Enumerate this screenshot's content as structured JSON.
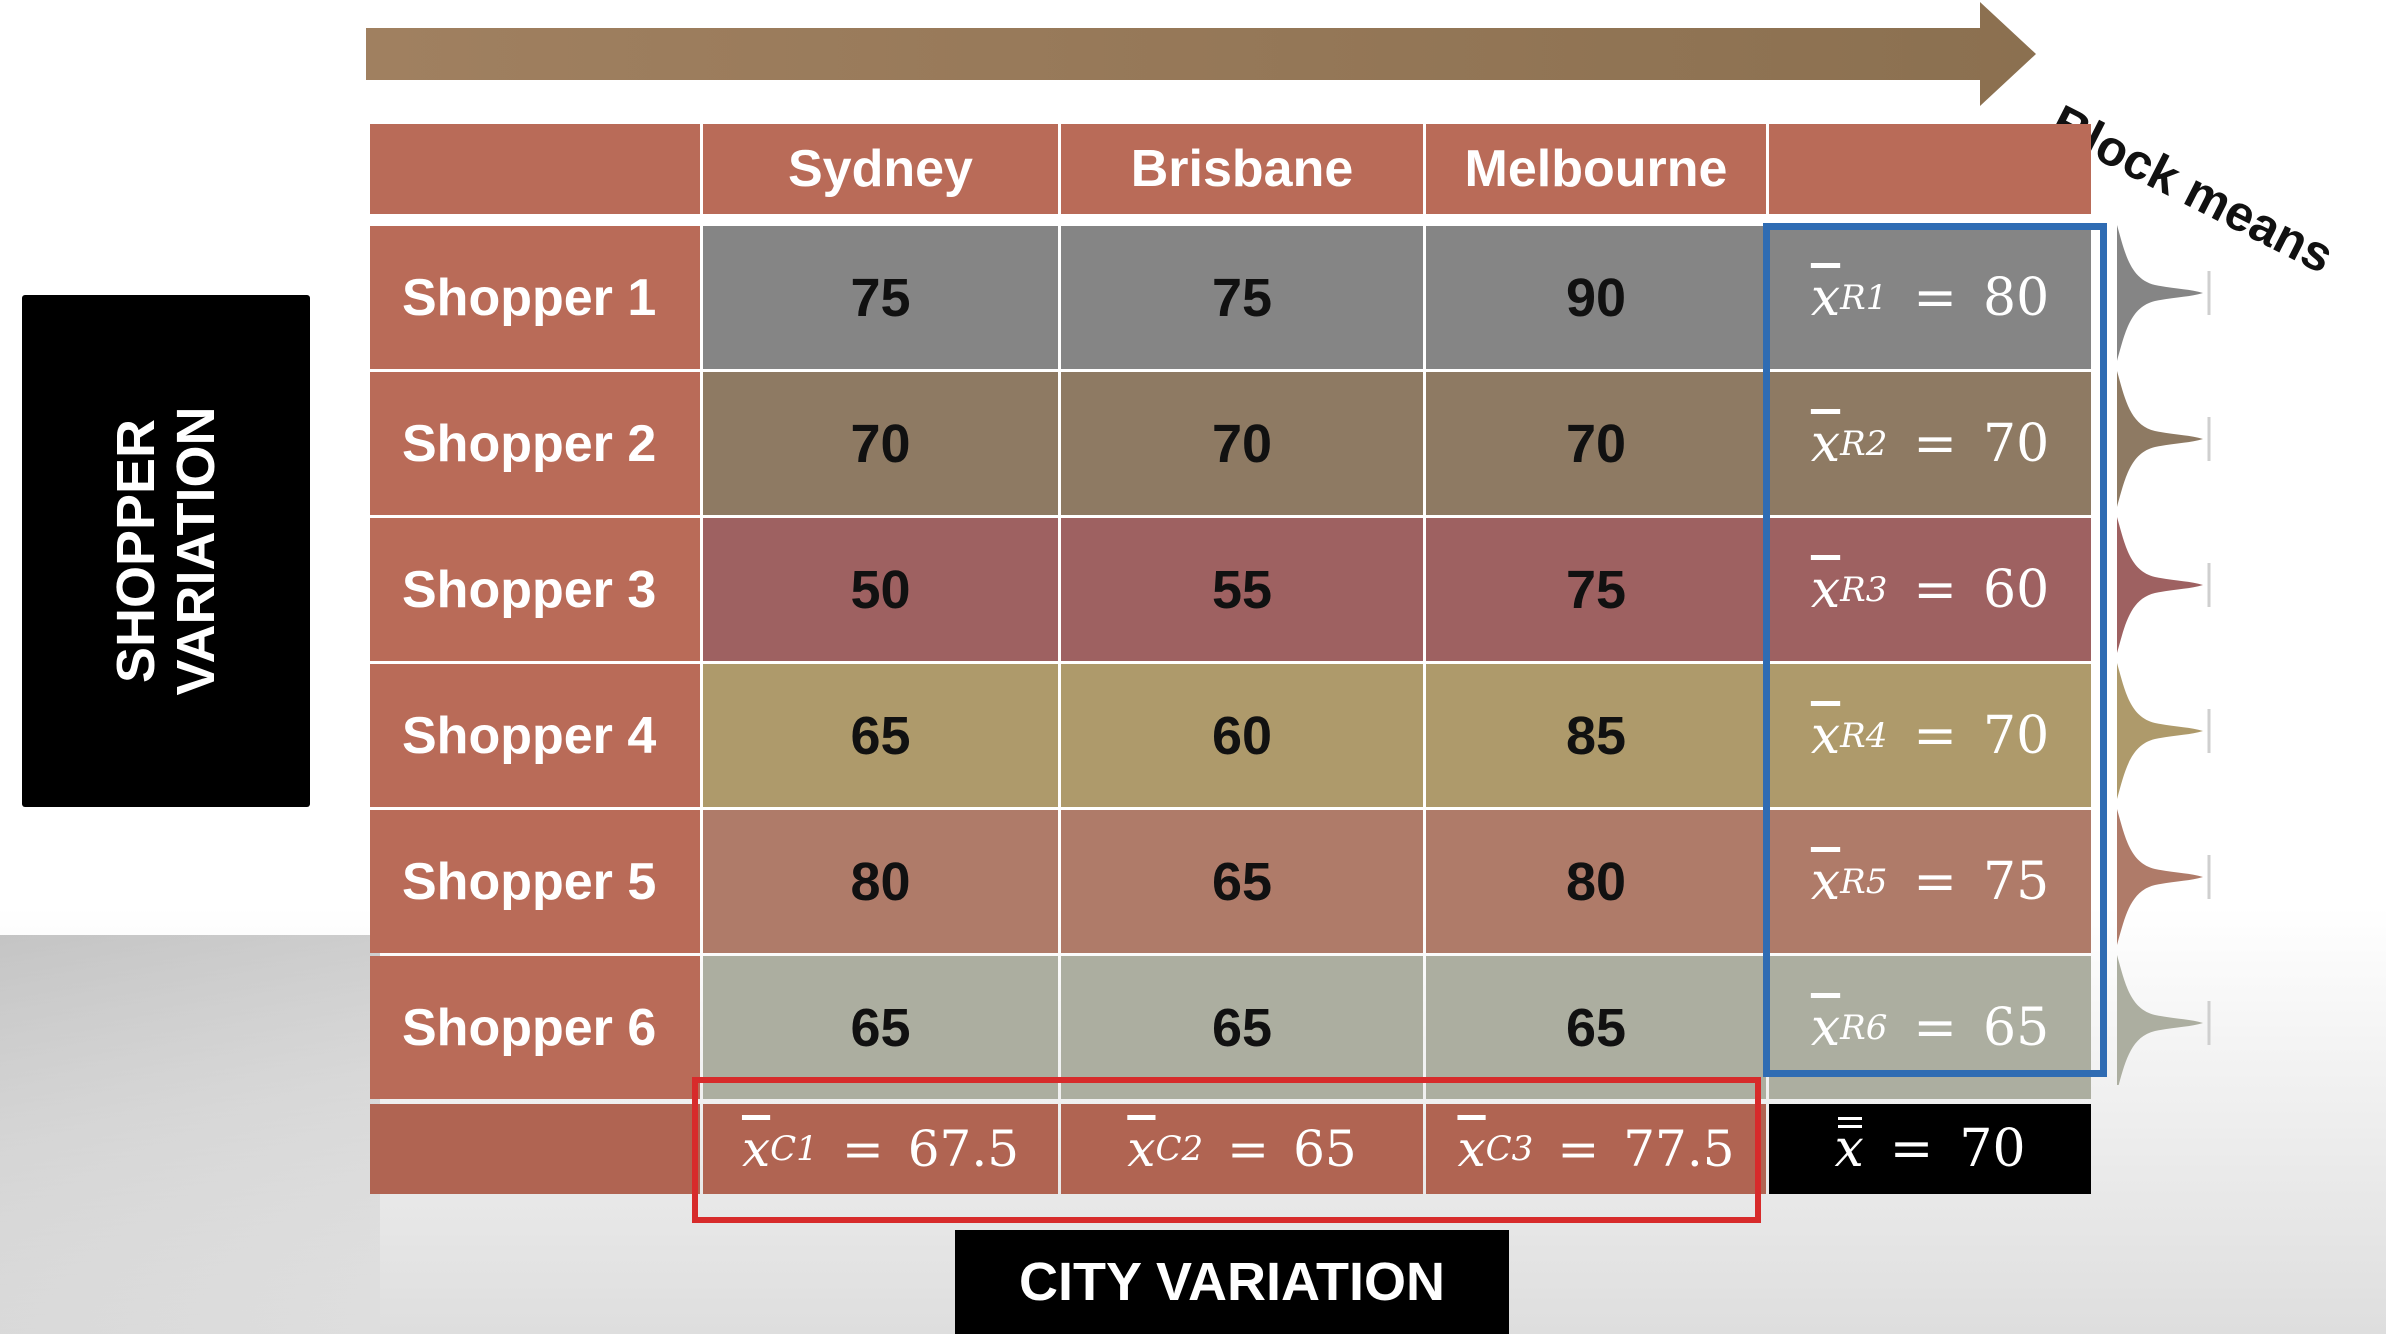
{
  "arrow_label": "Block means",
  "side_label": "SHOPPER VARIATION",
  "bottom_label": "CITY VARIATION",
  "columns": [
    "Sydney",
    "Brisbane",
    "Melbourne"
  ],
  "rows": [
    {
      "label": "Shopper 1",
      "values": [
        "75",
        "75",
        "90"
      ],
      "mean_sub": "R1",
      "mean": "80",
      "color": "#858585"
    },
    {
      "label": "Shopper 2",
      "values": [
        "70",
        "70",
        "70"
      ],
      "mean_sub": "R2",
      "mean": "70",
      "color": "#8e7a63"
    },
    {
      "label": "Shopper 3",
      "values": [
        "50",
        "55",
        "75"
      ],
      "mean_sub": "R3",
      "mean": "60",
      "color": "#9e6161"
    },
    {
      "label": "Shopper 4",
      "values": [
        "65",
        "60",
        "85"
      ],
      "mean_sub": "R4",
      "mean": "70",
      "color": "#ae9a6b"
    },
    {
      "label": "Shopper 5",
      "values": [
        "80",
        "65",
        "80"
      ],
      "mean_sub": "R5",
      "mean": "75",
      "color": "#af7b69"
    },
    {
      "label": "Shopper 6",
      "values": [
        "65",
        "65",
        "65"
      ],
      "mean_sub": "R6",
      "mean": "65",
      "color": "#acaea0"
    }
  ],
  "column_means": [
    {
      "sub": "C1",
      "value": "67.5"
    },
    {
      "sub": "C2",
      "value": "65"
    },
    {
      "sub": "C3",
      "value": "77.5"
    }
  ],
  "grand_mean": {
    "symbol": "x",
    "value": "70"
  },
  "mean_symbol": "x",
  "equals": "=",
  "colors": {
    "header": "#b96b58",
    "arrow": "#8b7050",
    "block_means_box": "#2f6cb3",
    "city_means_box": "#d72b2b"
  }
}
